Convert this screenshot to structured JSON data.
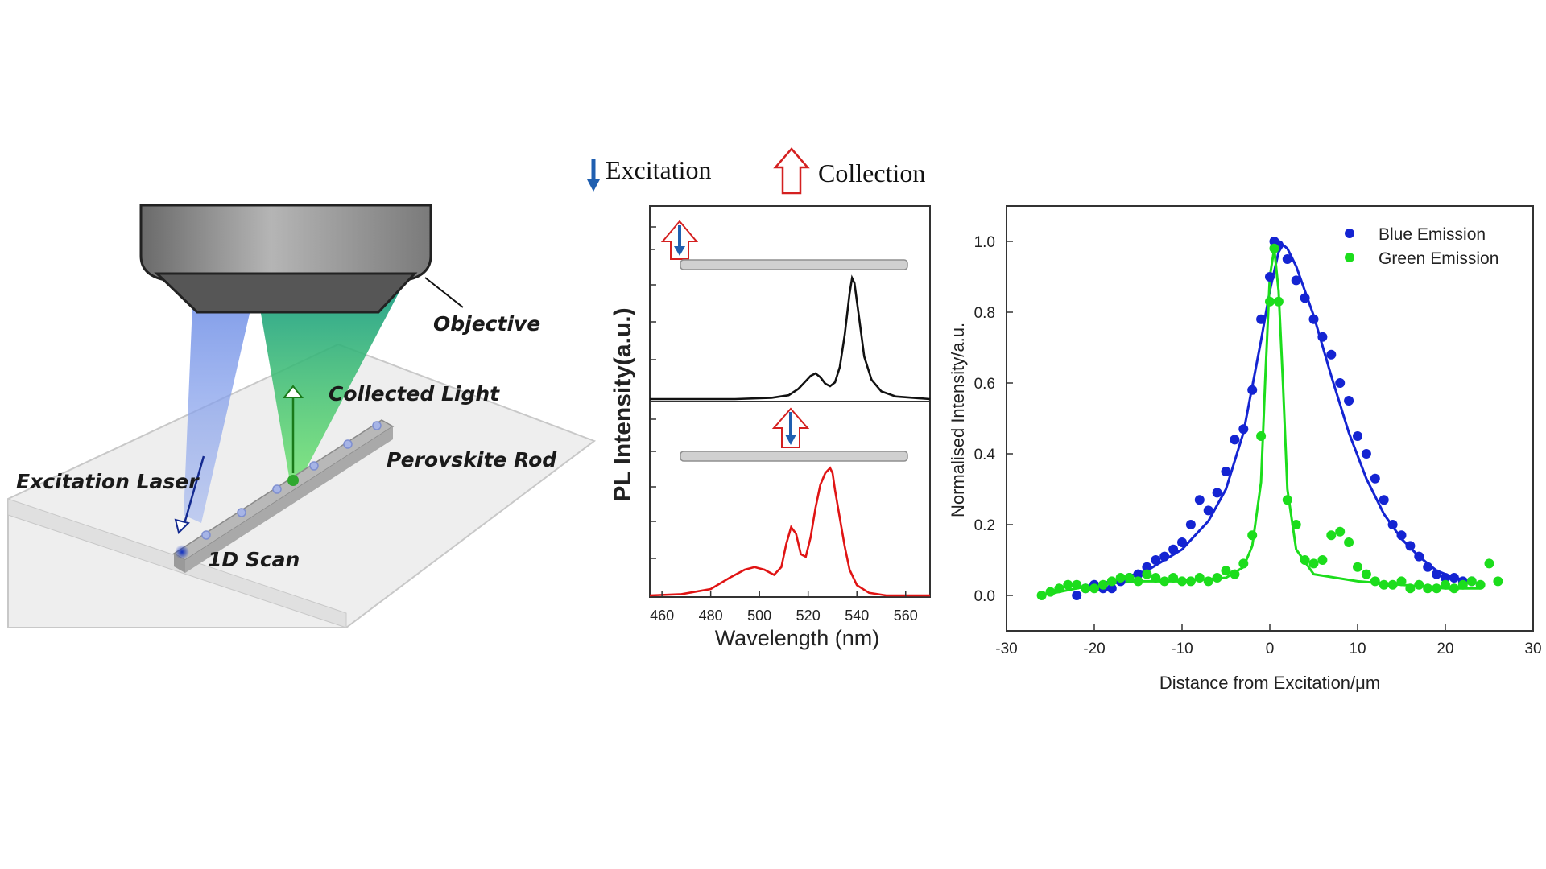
{
  "schematic": {
    "objective_label": "Objective",
    "collected_light_label": "Collected Light",
    "perovskite_rod_label": "Perovskite Rod",
    "excitation_laser_label": "Excitation Laser",
    "scan_label": "1D Scan"
  },
  "legend_top": {
    "excitation": "Excitation",
    "collection": "Collection"
  },
  "chart_data": [
    {
      "type": "line",
      "xlabel": "Wavelength (nm)",
      "ylabel": "PL Intensity(a.u.)",
      "xlim": [
        455,
        570
      ],
      "xticks": [
        460,
        480,
        500,
        520,
        540,
        560
      ],
      "series": [
        {
          "color": "#111111",
          "x": [
            455,
            470,
            490,
            505,
            512,
            516,
            519,
            521,
            523,
            525,
            527,
            529,
            531,
            533,
            535,
            537,
            538,
            539,
            541,
            543,
            546,
            550,
            556,
            570
          ],
          "y": [
            0.0,
            0.0,
            0.0,
            0.01,
            0.03,
            0.08,
            0.14,
            0.18,
            0.2,
            0.17,
            0.12,
            0.1,
            0.13,
            0.25,
            0.5,
            0.82,
            0.94,
            0.9,
            0.62,
            0.33,
            0.15,
            0.06,
            0.02,
            0.0
          ]
        },
        {
          "color": "#e01414",
          "x": [
            455,
            468,
            480,
            488,
            494,
            498,
            502,
            506,
            509,
            511,
            513,
            515,
            517,
            519,
            521,
            523,
            525,
            527,
            529,
            530,
            531,
            533,
            535,
            537,
            540,
            545,
            552,
            570
          ],
          "y": [
            0.0,
            0.01,
            0.05,
            0.14,
            0.2,
            0.22,
            0.2,
            0.16,
            0.22,
            0.4,
            0.53,
            0.48,
            0.32,
            0.3,
            0.45,
            0.68,
            0.86,
            0.95,
            0.99,
            0.95,
            0.82,
            0.6,
            0.38,
            0.2,
            0.08,
            0.02,
            0.0,
            0.0
          ]
        }
      ]
    },
    {
      "type": "scatter",
      "xlabel": "Distance from Excitation/μm",
      "ylabel": "Normalised Intensity/a.u.",
      "xlim": [
        -30,
        30
      ],
      "ylim": [
        -0.1,
        1.1
      ],
      "xticks": [
        -30,
        -20,
        -10,
        0,
        10,
        20,
        30
      ],
      "yticks": [
        0.0,
        0.2,
        0.4,
        0.6,
        0.8,
        1.0
      ],
      "legend_position": "top-right",
      "series": [
        {
          "name": "Blue Emission",
          "color": "#1424d2",
          "points": [
            [
              -22,
              0.0
            ],
            [
              -21,
              0.02
            ],
            [
              -20,
              0.03
            ],
            [
              -19,
              0.02
            ],
            [
              -18,
              0.02
            ],
            [
              -17,
              0.04
            ],
            [
              -16,
              0.05
            ],
            [
              -15,
              0.06
            ],
            [
              -14,
              0.08
            ],
            [
              -13,
              0.1
            ],
            [
              -12,
              0.11
            ],
            [
              -11,
              0.13
            ],
            [
              -10,
              0.15
            ],
            [
              -9,
              0.2
            ],
            [
              -8,
              0.27
            ],
            [
              -7,
              0.24
            ],
            [
              -6,
              0.29
            ],
            [
              -5,
              0.35
            ],
            [
              -4,
              0.44
            ],
            [
              -3,
              0.47
            ],
            [
              -2,
              0.58
            ],
            [
              -1,
              0.78
            ],
            [
              0,
              0.9
            ],
            [
              1,
              0.99
            ],
            [
              0.5,
              1.0
            ],
            [
              2,
              0.95
            ],
            [
              3,
              0.89
            ],
            [
              4,
              0.84
            ],
            [
              5,
              0.78
            ],
            [
              6,
              0.73
            ],
            [
              7,
              0.68
            ],
            [
              8,
              0.6
            ],
            [
              9,
              0.55
            ],
            [
              10,
              0.45
            ],
            [
              11,
              0.4
            ],
            [
              12,
              0.33
            ],
            [
              13,
              0.27
            ],
            [
              14,
              0.2
            ],
            [
              15,
              0.17
            ],
            [
              16,
              0.14
            ],
            [
              17,
              0.11
            ],
            [
              18,
              0.08
            ],
            [
              19,
              0.06
            ],
            [
              20,
              0.05
            ],
            [
              21,
              0.05
            ],
            [
              22,
              0.04
            ],
            [
              23,
              0.04
            ]
          ],
          "fit_x": [
            -22,
            -18,
            -14,
            -10,
            -7,
            -5,
            -3,
            -1,
            0,
            1,
            1.5,
            2,
            3,
            5,
            7,
            9,
            11,
            13,
            15,
            17,
            19,
            21,
            23
          ],
          "fit_y": [
            0.02,
            0.04,
            0.07,
            0.13,
            0.21,
            0.3,
            0.46,
            0.72,
            0.86,
            0.97,
            0.99,
            0.98,
            0.93,
            0.79,
            0.62,
            0.46,
            0.33,
            0.23,
            0.16,
            0.11,
            0.07,
            0.05,
            0.04
          ]
        },
        {
          "name": "Green Emission",
          "color": "#1cdd1c",
          "points": [
            [
              -26,
              0.0
            ],
            [
              -25,
              0.01
            ],
            [
              -24,
              0.02
            ],
            [
              -23,
              0.03
            ],
            [
              -22,
              0.03
            ],
            [
              -21,
              0.02
            ],
            [
              -20,
              0.02
            ],
            [
              -19,
              0.03
            ],
            [
              -18,
              0.04
            ],
            [
              -17,
              0.05
            ],
            [
              -16,
              0.05
            ],
            [
              -15,
              0.04
            ],
            [
              -14,
              0.06
            ],
            [
              -13,
              0.05
            ],
            [
              -12,
              0.04
            ],
            [
              -11,
              0.05
            ],
            [
              -10,
              0.04
            ],
            [
              -9,
              0.04
            ],
            [
              -8,
              0.05
            ],
            [
              -7,
              0.04
            ],
            [
              -6,
              0.05
            ],
            [
              -5,
              0.07
            ],
            [
              -4,
              0.06
            ],
            [
              -3,
              0.09
            ],
            [
              -2,
              0.17
            ],
            [
              -1,
              0.45
            ],
            [
              0,
              0.83
            ],
            [
              0.5,
              0.98
            ],
            [
              1,
              0.83
            ],
            [
              2,
              0.27
            ],
            [
              3,
              0.2
            ],
            [
              4,
              0.1
            ],
            [
              5,
              0.09
            ],
            [
              6,
              0.1
            ],
            [
              7,
              0.17
            ],
            [
              8,
              0.18
            ],
            [
              9,
              0.15
            ],
            [
              10,
              0.08
            ],
            [
              11,
              0.06
            ],
            [
              12,
              0.04
            ],
            [
              13,
              0.03
            ],
            [
              14,
              0.03
            ],
            [
              15,
              0.04
            ],
            [
              16,
              0.02
            ],
            [
              17,
              0.03
            ],
            [
              18,
              0.02
            ],
            [
              19,
              0.02
            ],
            [
              20,
              0.03
            ],
            [
              21,
              0.02
            ],
            [
              22,
              0.03
            ],
            [
              23,
              0.04
            ],
            [
              24,
              0.03
            ],
            [
              25,
              0.09
            ],
            [
              26,
              0.04
            ]
          ],
          "fit_x": [
            -26,
            -20,
            -15,
            -10,
            -5,
            -3,
            -2,
            -1,
            -0.5,
            0,
            0.5,
            1,
            1.5,
            2,
            3,
            5,
            10,
            15,
            20,
            24
          ],
          "fit_y": [
            0.0,
            0.03,
            0.04,
            0.04,
            0.05,
            0.08,
            0.14,
            0.32,
            0.62,
            0.9,
            0.98,
            0.86,
            0.6,
            0.3,
            0.13,
            0.06,
            0.04,
            0.03,
            0.02,
            0.02
          ]
        }
      ]
    }
  ]
}
